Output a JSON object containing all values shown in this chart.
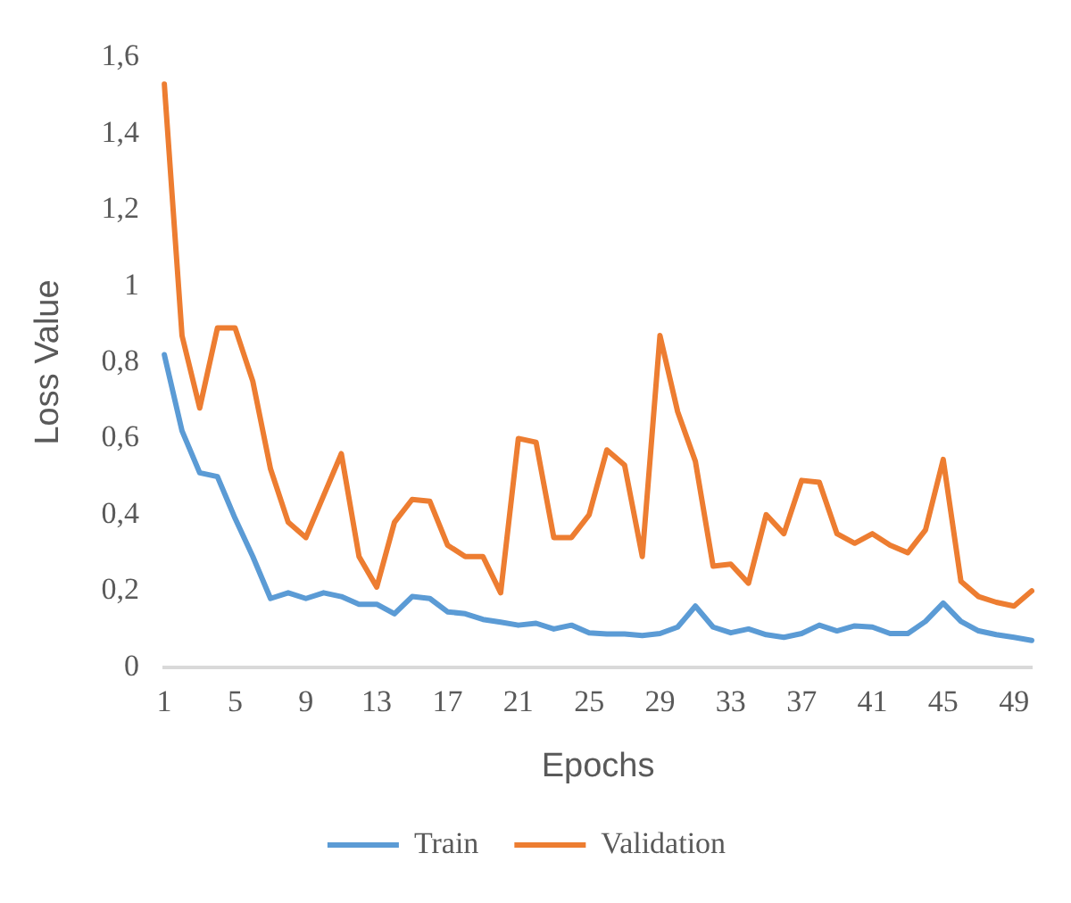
{
  "chart_data": {
    "type": "line",
    "xlabel": "Epochs",
    "ylabel": "Loss Value",
    "categories": [
      "1",
      null,
      null,
      null,
      "5",
      null,
      null,
      null,
      "9",
      null,
      null,
      null,
      "13",
      null,
      null,
      null,
      "17",
      null,
      null,
      null,
      "21",
      null,
      null,
      null,
      "25",
      null,
      null,
      null,
      "29",
      null,
      null,
      null,
      "33",
      null,
      null,
      null,
      "37",
      null,
      null,
      null,
      "41",
      null,
      null,
      null,
      "45",
      null,
      null,
      null,
      "49",
      null
    ],
    "series": [
      {
        "name": "Train",
        "color": "#5b9bd5",
        "values": [
          0.82,
          0.62,
          0.51,
          0.5,
          0.39,
          0.29,
          0.18,
          0.195,
          0.18,
          0.195,
          0.185,
          0.165,
          0.165,
          0.14,
          0.185,
          0.18,
          0.145,
          0.14,
          0.125,
          0.118,
          0.11,
          0.115,
          0.1,
          0.11,
          0.09,
          0.087,
          0.087,
          0.083,
          0.088,
          0.105,
          0.16,
          0.105,
          0.09,
          0.1,
          0.085,
          0.078,
          0.088,
          0.11,
          0.095,
          0.108,
          0.105,
          0.088,
          0.088,
          0.12,
          0.168,
          0.12,
          0.095,
          0.085,
          0.078,
          0.07
        ]
      },
      {
        "name": "Validation",
        "color": "#ed7d31",
        "values": [
          1.53,
          0.87,
          0.68,
          0.89,
          0.89,
          0.75,
          0.52,
          0.38,
          0.34,
          0.45,
          0.56,
          0.29,
          0.21,
          0.38,
          0.44,
          0.435,
          0.32,
          0.29,
          0.29,
          0.195,
          0.6,
          0.59,
          0.34,
          0.34,
          0.4,
          0.57,
          0.53,
          0.29,
          0.87,
          0.67,
          0.54,
          0.265,
          0.27,
          0.22,
          0.4,
          0.35,
          0.49,
          0.485,
          0.35,
          0.325,
          0.35,
          0.32,
          0.3,
          0.36,
          0.545,
          0.225,
          0.185,
          0.17,
          0.16,
          0.2
        ]
      }
    ],
    "ylim": [
      0,
      1.6
    ],
    "yticks": [
      0,
      {
        "value": 0.2,
        "label": "0,2"
      },
      {
        "value": 0.4,
        "label": "0,4"
      },
      {
        "value": 0.6,
        "label": "0,6"
      },
      {
        "value": 0.8,
        "label": "0,8"
      },
      1,
      {
        "value": 1.2,
        "label": "1,2"
      },
      {
        "value": 1.4,
        "label": "1,4"
      },
      {
        "value": 1.6,
        "label": "1,6"
      }
    ],
    "grid": false,
    "legend": "bottom",
    "marker": "none",
    "line_style": "solid"
  }
}
